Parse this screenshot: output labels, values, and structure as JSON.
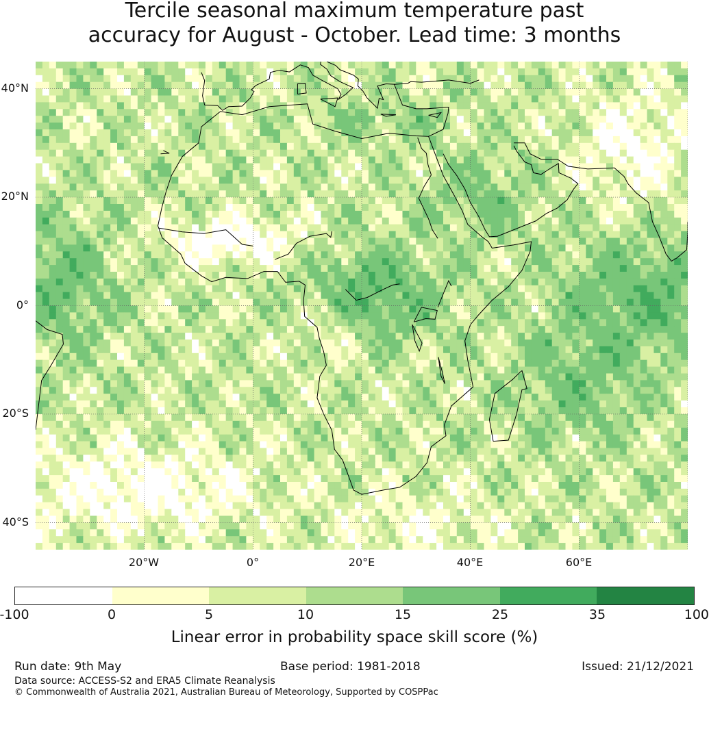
{
  "title": {
    "line1": "Tercile seasonal maximum temperature past",
    "line2": "accuracy for August - October. Lead time: 3 months"
  },
  "map": {
    "lon_range": [
      -40,
      80
    ],
    "lat_range": [
      -45,
      45
    ],
    "lat_labels": [
      "40°N",
      "20°N",
      "0°",
      "20°S",
      "40°S"
    ],
    "lon_labels": [
      "20°W",
      "0°",
      "20°E",
      "40°E",
      "60°E"
    ]
  },
  "colorbar": {
    "colors": [
      "#ffffff",
      "#ffffcc",
      "#d9f0a3",
      "#addd8e",
      "#78c679",
      "#41ab5d",
      "#238443"
    ],
    "ticks": [
      "-100",
      "0",
      "5",
      "10",
      "15",
      "25",
      "35",
      "100"
    ],
    "label": "Linear error in probability space skill score (%)"
  },
  "footer": {
    "run_date": "Run date: 9th May",
    "base_period": "Base period: 1981-2018",
    "issued": "Issued: 21/12/2021",
    "data_source": "Data source: ACCESS-S2 and ERA5 Climate Reanalysis",
    "copyright": "© Commonwealth of Australia 2021, Australian Bureau of Meteorology, Supported by COSPPac"
  }
}
